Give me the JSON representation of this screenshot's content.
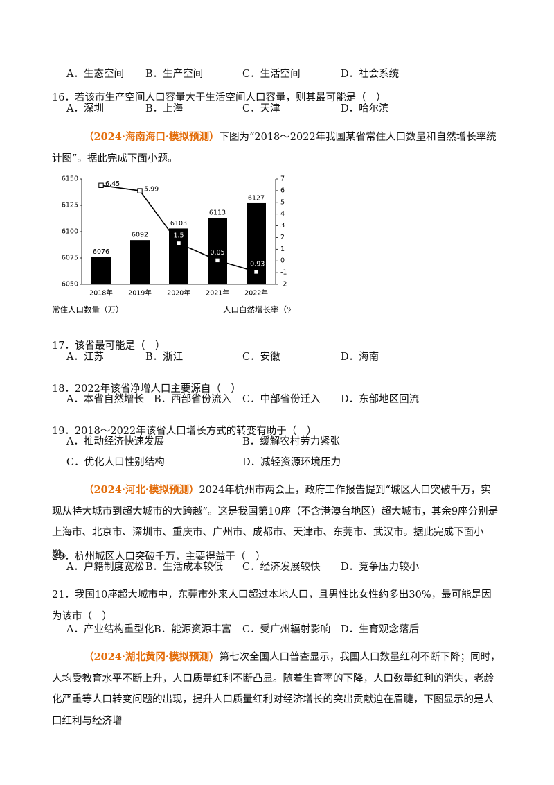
{
  "document": {
    "blocks": [
      {
        "options": [
          "A．生态空间",
          "B．生产空间",
          "C．生活空间",
          "D．社会系统"
        ]
      },
      {
        "question": "16．若该市生产空间人口容量大于生活空间人口容量，则其最可能是（　）",
        "options": [
          "A．深圳",
          "B．上海",
          "C．天津",
          "D．哈尔滨"
        ]
      },
      {
        "source": "（2024·海南海口·模拟预测）",
        "text": "下图为“2018～2022年我国某省常住人口数量和自然增长率统计图”。据此完成下面小题。"
      },
      {
        "question": "17．该省最可能是（　）",
        "options": [
          "A．江苏",
          "B．浙江",
          "C．安徽",
          "D．海南"
        ]
      },
      {
        "question": "18．2022年该省净增人口主要源自（　）",
        "options": [
          "A．本省自然增长",
          "B．西部省份流入",
          "C．中部省份迁入",
          "D．东部地区回流"
        ]
      },
      {
        "question": "19．2018～2022年该省人口增长方式的转变有助于（　）",
        "options": [
          "A．推动经济快速发展",
          "B．缓解农村劳力紧张",
          "C．优化人口性别结构",
          "D．减轻资源环境压力"
        ]
      },
      {
        "source": "（2024·河北·模拟预测）",
        "text": "2024年杭州市两会上，政府工作报告提到“城区人口突破千万，实现从特大城市到超大城市的大跨越”。这是我国第10座（不含港澳台地区）超大城市，其余9座分别是上海市、北京市、深圳市、重庆市、广州市、成都市、天津市、东莞市、武汉市。据此完成下面小题。"
      },
      {
        "question": "20．杭州城区人口突破千万，主要得益于（　）",
        "options": [
          "A．户籍制度宽松",
          "B．生活成本较低",
          "C．经济发展较快",
          "D．竞争压力较小"
        ]
      },
      {
        "question": "21．我国10座超大城市中，东莞市外来人口超过本地人口，且男性比女性约多出30%，最可能是因为该市（　）",
        "options": [
          "A．产业结构重型化",
          "B．能源资源丰富",
          "C．受广州辐射影响",
          "D．生育观念落后"
        ]
      },
      {
        "source": "（2024·湖北黄冈·模拟预测）",
        "text": "第七次全国人口普查显示，我国人口数量红利不断下降；同时，人均受教育水平不断上升，人口质量红利不断凸显。随着生育率的下降，人口数量红利的消失，老龄化严重等人口转变问题的出现，提升人口质量红利对经济增长的突出贡献迫在眉睫，下图显示的是人口红利与经济增"
      }
    ]
  },
  "chart_data": {
    "type": "bar",
    "categories": [
      "2018年",
      "2019年",
      "2020年",
      "2021年",
      "2022年"
    ],
    "series": [
      {
        "name": "常住人口数量（万）",
        "color": "#000000",
        "values": [
          6076,
          6092,
          6103,
          6113,
          6127
        ]
      },
      {
        "name": "人口自然增长率（%）",
        "color": "#000000",
        "values": [
          6.45,
          5.99,
          1.5,
          0.05,
          -0.93
        ],
        "axis": "y2"
      }
    ],
    "ylim": [
      6050,
      6150
    ],
    "yticks": [
      6050,
      6075,
      6100,
      6125,
      6150
    ],
    "y2lim": [
      -2,
      7
    ],
    "y2ticks": [
      -2,
      -1,
      0,
      1,
      2,
      3,
      4,
      5,
      6,
      7
    ]
  }
}
